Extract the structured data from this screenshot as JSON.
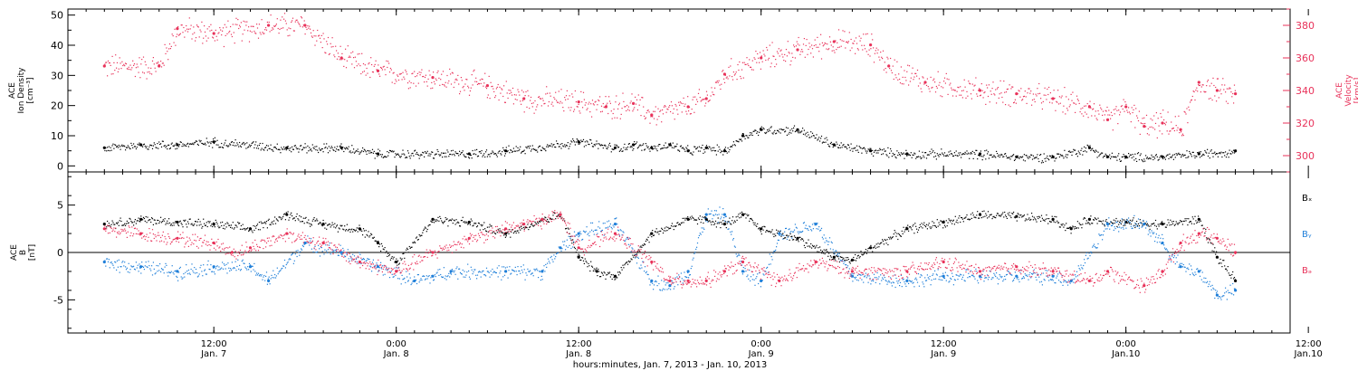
{
  "chart_data": [
    {
      "type": "scatter",
      "panel": "top",
      "left_axis": {
        "label_lines": [
          "ACE",
          "Ion Density",
          "[cm⁻³]"
        ],
        "range": [
          -2,
          52
        ],
        "ticks": [
          0,
          10,
          20,
          30,
          40,
          50
        ],
        "tick_labels": [
          "0",
          "10",
          "20",
          "30",
          "40",
          "50"
        ],
        "color": "#000000"
      },
      "right_axis": {
        "label_lines": [
          "ACE",
          "Velocity",
          "[km/s]"
        ],
        "range": [
          290,
          390
        ],
        "ticks": [
          300,
          320,
          340,
          360,
          380
        ],
        "tick_labels": [
          "300",
          "320",
          "340",
          "360",
          "380"
        ],
        "color": "#e8325a"
      },
      "series": [
        {
          "axis": "right",
          "color": "#e8325a",
          "hours": [
            0,
            6,
            8,
            12,
            18,
            22,
            26,
            30,
            36,
            42,
            46,
            52,
            55,
            58,
            60,
            64,
            66,
            68,
            72,
            76,
            80,
            84,
            86,
            90,
            96,
            100,
            104,
            108,
            110,
            112,
            114,
            116,
            118,
            120,
            122,
            124
          ],
          "values": [
            355,
            355,
            378,
            375,
            380,
            380,
            360,
            352,
            348,
            343,
            335,
            333,
            330,
            332,
            325,
            330,
            335,
            350,
            360,
            365,
            370,
            368,
            355,
            345,
            340,
            338,
            335,
            330,
            322,
            330,
            318,
            320,
            316,
            345,
            340,
            338
          ]
        },
        {
          "axis": "left",
          "color": "#000000",
          "hours": [
            0,
            4,
            8,
            12,
            20,
            26,
            30,
            40,
            44,
            52,
            56,
            58,
            60,
            62,
            64,
            66,
            68,
            70,
            72,
            76,
            80,
            84,
            88,
            96,
            100,
            104,
            108,
            110,
            112,
            116,
            120,
            124
          ],
          "values": [
            6,
            7,
            7,
            8,
            6,
            6,
            4,
            4,
            5,
            8,
            6,
            7,
            6,
            7,
            5,
            6,
            5,
            10,
            12,
            12,
            7,
            5,
            4,
            4,
            3,
            3,
            6,
            3,
            3,
            3,
            4,
            5
          ]
        }
      ]
    },
    {
      "type": "scatter",
      "panel": "bottom",
      "left_axis": {
        "label_lines": [
          "ACE",
          "B",
          "[nT]"
        ],
        "range": [
          -8.5,
          8.5
        ],
        "ticks": [
          -5,
          0,
          5
        ],
        "tick_labels": [
          "-5",
          "0",
          "5"
        ],
        "color": "#000000"
      },
      "legend": [
        "Bₓ",
        "Bᵧ",
        "Bₔ"
      ],
      "series": [
        {
          "name": "Bx",
          "color": "#000000",
          "hours": [
            0,
            4,
            8,
            12,
            16,
            20,
            24,
            28,
            30,
            32,
            36,
            40,
            44,
            48,
            50,
            52,
            54,
            56,
            60,
            64,
            66,
            68,
            70,
            72,
            76,
            80,
            82,
            84,
            88,
            92,
            96,
            100,
            104,
            106,
            108,
            112,
            116,
            120,
            122,
            124
          ],
          "values": [
            3,
            3.5,
            3.2,
            3,
            2.5,
            4,
            3,
            2.5,
            1,
            -1,
            3.5,
            3.2,
            2,
            3.5,
            4,
            -0.5,
            -2,
            -2.5,
            2,
            3.5,
            3.5,
            3,
            4,
            2.5,
            1.5,
            -0.5,
            -0.8,
            0.5,
            2.5,
            3.2,
            4,
            3.8,
            3.5,
            2.5,
            3.5,
            3.2,
            3,
            3.5,
            -0.5,
            -3
          ]
        },
        {
          "name": "By",
          "color": "#1f7fd9",
          "hours": [
            0,
            4,
            8,
            12,
            16,
            18,
            22,
            26,
            30,
            34,
            36,
            38,
            44,
            48,
            50,
            52,
            56,
            60,
            62,
            64,
            66,
            68,
            70,
            72,
            74,
            78,
            82,
            88,
            92,
            96,
            100,
            104,
            106,
            110,
            114,
            116,
            118,
            120,
            122,
            124
          ],
          "values": [
            -1,
            -1.5,
            -2,
            -1.5,
            -1.5,
            -3,
            1,
            0,
            -1.5,
            -3,
            -2.5,
            -2,
            -2,
            -2,
            0.5,
            2,
            3,
            -3,
            -3.5,
            -2,
            4,
            4,
            -2,
            -3,
            2,
            3,
            -2.5,
            -3,
            -2.5,
            -2.5,
            -2.5,
            -2.5,
            -3,
            3,
            3,
            1,
            -1.5,
            -2,
            -4.5,
            -4
          ]
        },
        {
          "name": "Bz",
          "color": "#e8325a",
          "hours": [
            0,
            4,
            8,
            12,
            14,
            16,
            20,
            24,
            28,
            32,
            36,
            40,
            44,
            46,
            48,
            50,
            52,
            56,
            60,
            62,
            64,
            66,
            68,
            70,
            74,
            78,
            82,
            88,
            92,
            96,
            100,
            104,
            108,
            110,
            114,
            116,
            118,
            120,
            122,
            124
          ],
          "values": [
            2.5,
            2,
            1.5,
            1,
            0,
            0.5,
            2,
            1,
            -1,
            -2,
            0,
            1.5,
            2.5,
            3,
            3.5,
            4,
            0.5,
            2,
            -1,
            -3,
            -3,
            -3,
            -2,
            -1,
            -3,
            -1,
            -2,
            -2,
            -1,
            -2,
            -1.5,
            -2,
            -3,
            -2,
            -3.5,
            -2,
            1,
            2,
            1.5,
            0
          ]
        }
      ]
    }
  ],
  "x_axis": {
    "range_hours": [
      -4,
      130
    ],
    "ticks_hours": [
      0,
      20,
      40,
      60,
      80,
      100,
      120
    ],
    "major_hours": [
      8,
      20,
      32,
      44,
      56,
      68,
      80,
      92,
      104,
      116
    ],
    "tick_labels": [
      {
        "time": "12:00",
        "date": "Jan. 7"
      },
      {
        "time": "0:00",
        "date": "Jan. 8"
      },
      {
        "time": "12:00",
        "date": "Jan. 8"
      },
      {
        "time": "0:00",
        "date": "Jan. 9"
      },
      {
        "time": "12:00",
        "date": "Jan. 9"
      },
      {
        "time": "0:00",
        "date": "Jan.10"
      },
      {
        "time": "12:00",
        "date": "Jan.10"
      }
    ],
    "tick_label_hours": [
      12,
      32,
      52,
      72,
      92,
      112,
      132
    ],
    "label": "hours:minutes, Jan.  7, 2013 - Jan. 10, 2013"
  }
}
